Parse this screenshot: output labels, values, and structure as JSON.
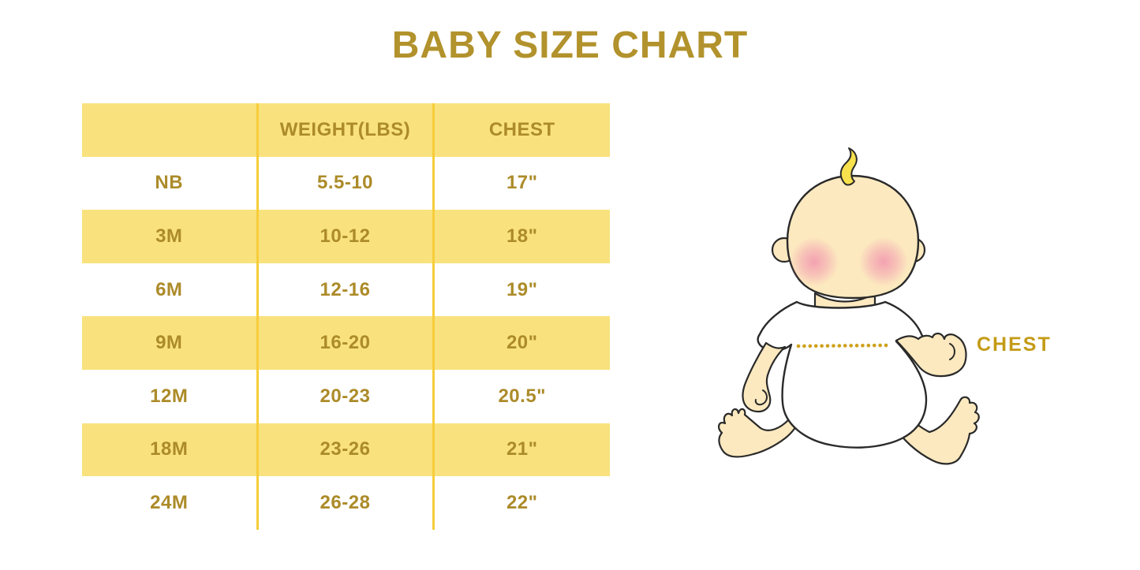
{
  "page": {
    "title": "BABY SIZE CHART",
    "background": "#ffffff"
  },
  "colors": {
    "title_text": "#b2922c",
    "table_text": "#ac8b29",
    "row_yellow": "#f9e27d",
    "row_white": "#ffffff",
    "column_divider": "#f6cd3a",
    "chest_label_text": "#c49b16",
    "dotted_line": "#cfa11b",
    "baby_skin": "#fce9bf",
    "baby_hair": "#f7e14d",
    "baby_cheek": "#f2a2b6",
    "baby_outline": "#2a2a2a",
    "baby_shirt": "#ffffff"
  },
  "chart_data": {
    "type": "table",
    "title": "BABY SIZE CHART",
    "columns": [
      "",
      "WEIGHT(LBS)",
      "CHEST"
    ],
    "rows": [
      [
        "NB",
        "5.5-10",
        "17\""
      ],
      [
        "3M",
        "10-12",
        "18\""
      ],
      [
        "6M",
        "12-16",
        "19\""
      ],
      [
        "9M",
        "16-20",
        "20\""
      ],
      [
        "12M",
        "20-23",
        "20.5\""
      ],
      [
        "18M",
        "23-26",
        "21\""
      ],
      [
        "24M",
        "26-28",
        "22\""
      ]
    ],
    "layout": {
      "header_background": "#f9e27d",
      "alternating_rows": [
        "#ffffff",
        "#f9e27d"
      ],
      "grid": "vertical-dividers-only"
    }
  },
  "figure": {
    "chest_label": "CHEST"
  }
}
